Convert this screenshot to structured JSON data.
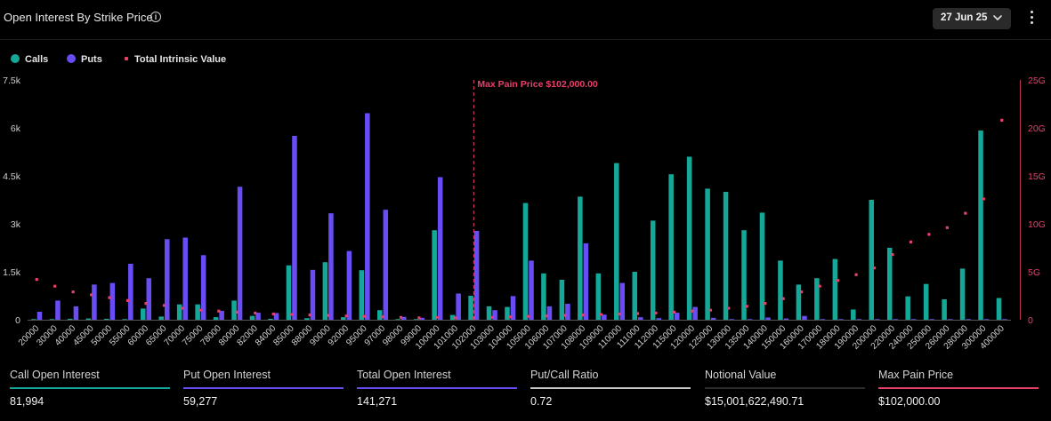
{
  "header": {
    "title": "Open Interest By Strike Price",
    "info_icon": "info-icon",
    "date_selector": "27 Jun 25",
    "chevron_icon": "chevron-down-icon",
    "menu_icon": "kebab-menu-icon"
  },
  "legend": {
    "calls": "Calls",
    "puts": "Puts",
    "intrinsic": "Total Intrinsic Value"
  },
  "colors": {
    "calls": "#14a899",
    "puts": "#6a4cf5",
    "intrinsic": "#e8406a",
    "background": "#000000"
  },
  "chart_data": {
    "type": "bar",
    "categories": [
      "20000",
      "30000",
      "40000",
      "45000",
      "50000",
      "55000",
      "60000",
      "65000",
      "70000",
      "75000",
      "78000",
      "80000",
      "82000",
      "84000",
      "85000",
      "88000",
      "90000",
      "92000",
      "95000",
      "97000",
      "98000",
      "99000",
      "100000",
      "101000",
      "102000",
      "103000",
      "104000",
      "105000",
      "106000",
      "107000",
      "108000",
      "109000",
      "110000",
      "111000",
      "112000",
      "115000",
      "120000",
      "125000",
      "130000",
      "135000",
      "140000",
      "150000",
      "160000",
      "170000",
      "180000",
      "190000",
      "200000",
      "220000",
      "240000",
      "250000",
      "260000",
      "280000",
      "300000",
      "400000"
    ],
    "series": [
      {
        "name": "Calls",
        "axis": "left",
        "values": [
          20,
          20,
          30,
          40,
          30,
          20,
          350,
          100,
          480,
          480,
          80,
          600,
          120,
          30,
          1700,
          50,
          1800,
          80,
          1550,
          300,
          20,
          20,
          2800,
          150,
          750,
          420,
          400,
          3650,
          1450,
          1250,
          3850,
          1450,
          4900,
          1500,
          3100,
          4550,
          5100,
          4100,
          4000,
          2800,
          3350,
          1850,
          1100,
          1300,
          1900,
          320,
          3750,
          2250,
          730,
          1120,
          640,
          1600,
          5920,
          680
        ]
      },
      {
        "name": "Puts",
        "axis": "left",
        "values": [
          250,
          600,
          420,
          1100,
          1150,
          1750,
          1300,
          2520,
          2570,
          2020,
          280,
          4160,
          220,
          210,
          5750,
          1560,
          3330,
          2150,
          6460,
          3440,
          90,
          60,
          4460,
          820,
          2780,
          300,
          740,
          1850,
          420,
          500,
          2390,
          160,
          1150,
          80,
          50,
          220,
          400,
          60,
          20,
          20,
          70,
          40,
          120,
          20,
          20,
          20,
          20,
          20,
          20,
          20,
          20,
          20,
          20,
          20
        ]
      },
      {
        "name": "Total Intrinsic Value",
        "type": "scatter",
        "axis": "right",
        "unit": "G",
        "values": [
          4.2,
          3.5,
          2.9,
          2.6,
          2.3,
          2.0,
          1.7,
          1.5,
          1.2,
          1.0,
          0.9,
          0.8,
          0.7,
          0.6,
          0.55,
          0.5,
          0.45,
          0.4,
          0.35,
          0.3,
          0.25,
          0.2,
          0.25,
          0.2,
          0.2,
          0.25,
          0.3,
          0.35,
          0.4,
          0.45,
          0.5,
          0.55,
          0.6,
          0.65,
          0.7,
          0.8,
          0.9,
          1.0,
          1.2,
          1.4,
          1.7,
          2.2,
          2.9,
          3.5,
          4.1,
          4.7,
          5.4,
          6.8,
          8.1,
          8.9,
          9.6,
          11.1,
          12.6,
          20.8
        ]
      }
    ],
    "y_left": {
      "ticks": [
        0,
        1500,
        3000,
        4500,
        6000,
        7500
      ],
      "tick_labels": [
        "0",
        "1.5k",
        "3k",
        "4.5k",
        "6k",
        "7.5k"
      ],
      "ylim": [
        0,
        7500
      ]
    },
    "y_right": {
      "ticks": [
        0,
        5,
        10,
        15,
        20,
        25
      ],
      "tick_labels": [
        "0",
        "5G",
        "10G",
        "15G",
        "20G",
        "25G"
      ],
      "ylim": [
        0,
        25
      ]
    },
    "max_pain": {
      "strike": "102000",
      "label": "Max Pain Price $102,000.00"
    },
    "grid": false,
    "legend_position": "top-left"
  },
  "stats": [
    {
      "label": "Call Open Interest",
      "value": "81,994",
      "color": "#14a899"
    },
    {
      "label": "Put Open Interest",
      "value": "59,277",
      "color": "#6a4cf5"
    },
    {
      "label": "Total Open Interest",
      "value": "141,271",
      "color": "#6a4cf5"
    },
    {
      "label": "Put/Call Ratio",
      "value": "0.72",
      "color": "#c8c8c8"
    },
    {
      "label": "Notional Value",
      "value": "$15,001,622,490.71",
      "color": "#2c2c2c"
    },
    {
      "label": "Max Pain Price",
      "value": "$102,000.00",
      "color": "#e8406a"
    }
  ]
}
